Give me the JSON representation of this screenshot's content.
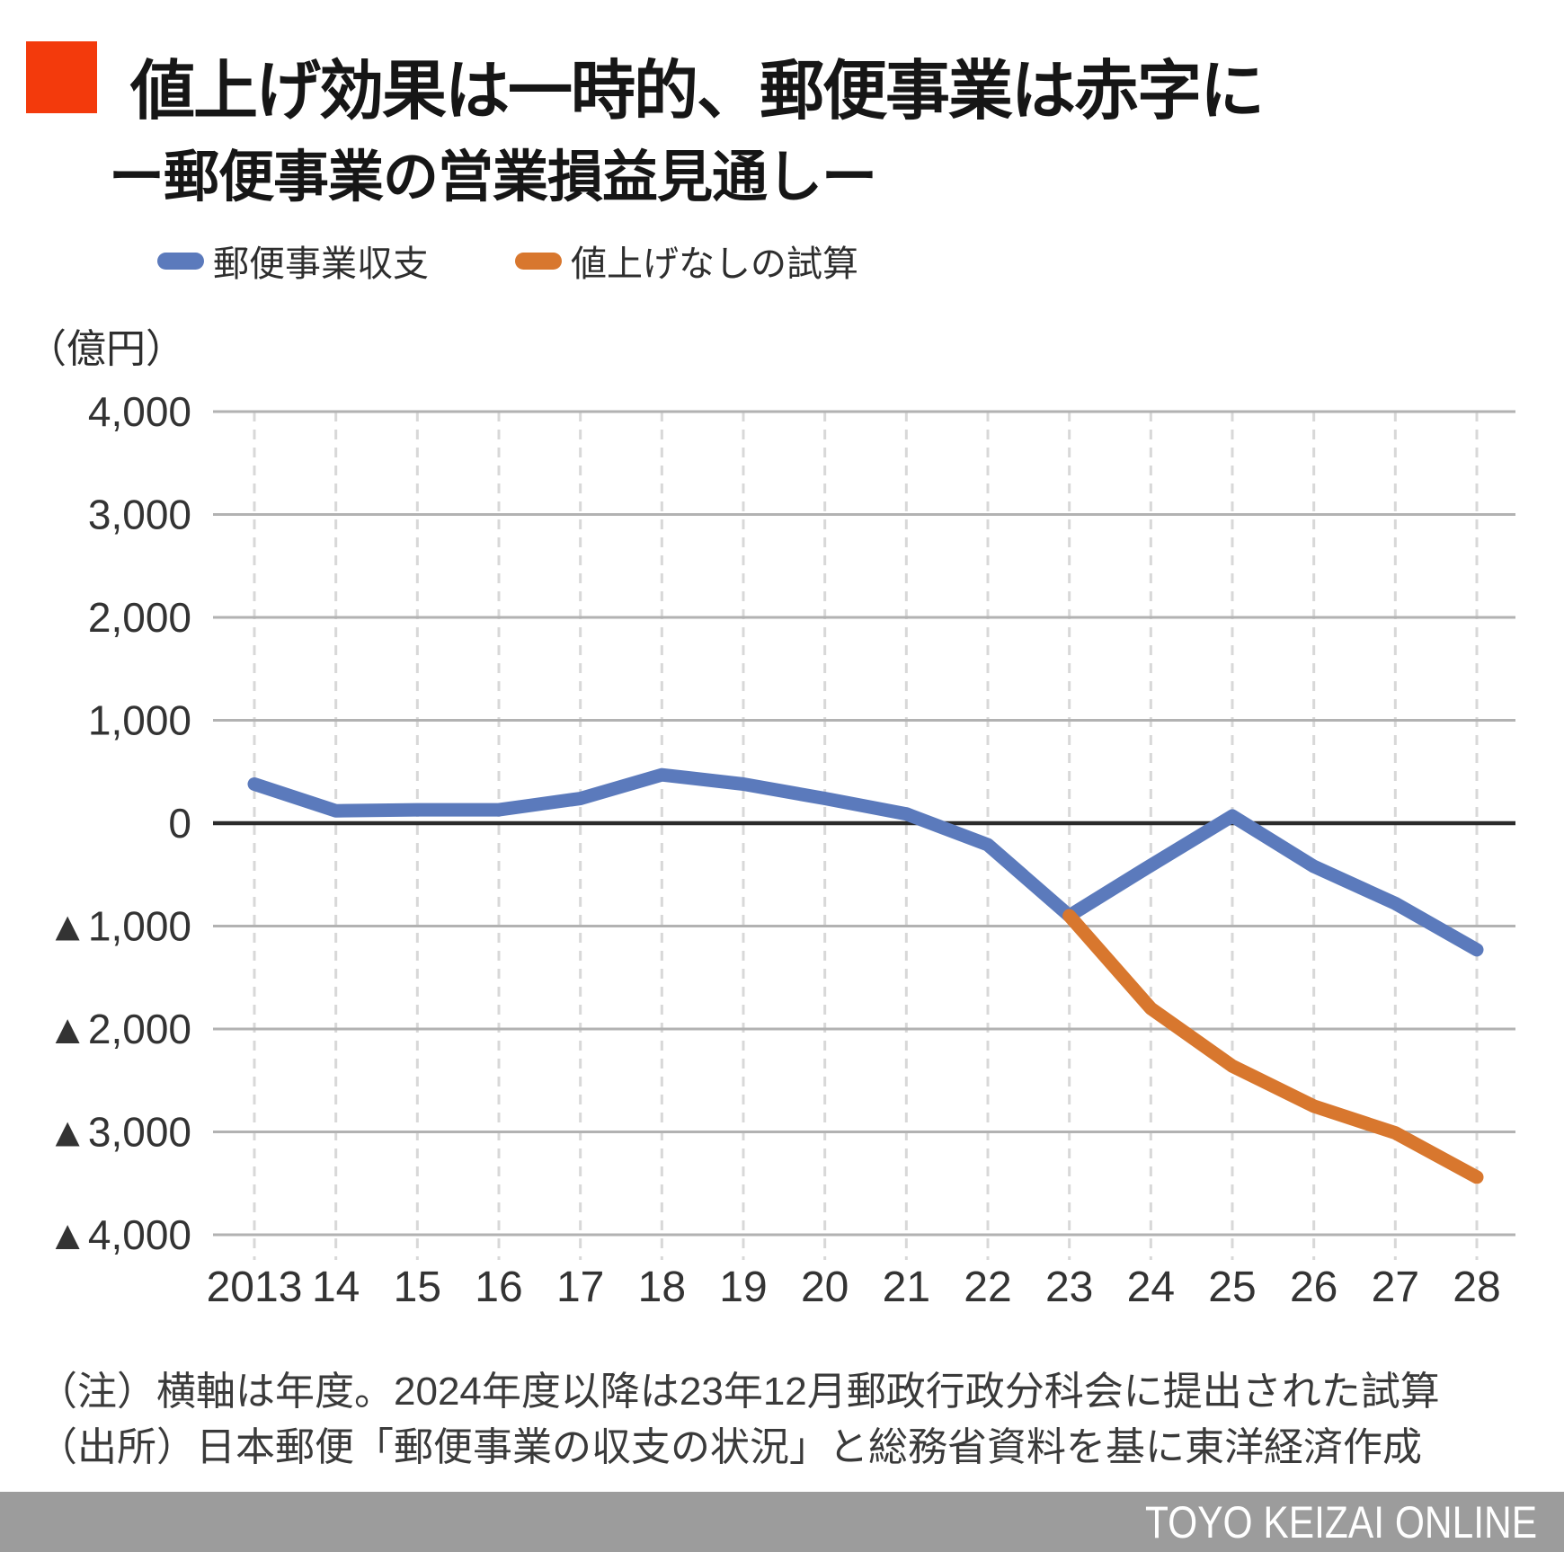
{
  "header": {
    "title": "値上げ効果は一時的、郵便事業は赤字に",
    "subtitle": "ー郵便事業の営業損益見通しー"
  },
  "legend": [
    {
      "label": "郵便事業収支",
      "color": "#5b7abc"
    },
    {
      "label": "値上げなしの試算",
      "color": "#d8772e"
    }
  ],
  "unit_label": "（億円）",
  "chart_data": {
    "type": "line",
    "title": "郵便事業の営業損益見通し",
    "categories": [
      "2013",
      "14",
      "15",
      "16",
      "17",
      "18",
      "19",
      "20",
      "21",
      "22",
      "23",
      "24",
      "25",
      "26",
      "27",
      "28"
    ],
    "series": [
      {
        "name": "郵便事業収支",
        "color": "#5b7abc",
        "values": [
          380,
          120,
          130,
          130,
          240,
          470,
          380,
          240,
          90,
          -210,
          -900,
          -410,
          70,
          -420,
          -780,
          -1230
        ]
      },
      {
        "name": "値上げなしの試算",
        "color": "#d8772e",
        "values": [
          null,
          null,
          null,
          null,
          null,
          null,
          null,
          null,
          null,
          null,
          -900,
          -1800,
          -2360,
          -2750,
          -3010,
          -3440
        ]
      }
    ],
    "ylabel": "（億円）",
    "ylim": [
      -4000,
      4000
    ],
    "ytick_step": 1000,
    "yticks": [
      "4,000",
      "3,000",
      "2,000",
      "1,000",
      "0",
      "▲1,000",
      "▲2,000",
      "▲3,000",
      "▲4,000"
    ],
    "negative_prefix": "▲",
    "grid": true,
    "legend_position": "top"
  },
  "notes": [
    "（注）横軸は年度。2024年度以降は23年12月郵政行政分科会に提出された試算",
    "（出所）日本郵便「郵便事業の収支の状況」と総務省資料を基に東洋経済作成"
  ],
  "footer": {
    "brand": "TOYO KEIZAI ONLINE"
  },
  "colors": {
    "accent_square": "#f33a0c",
    "blue": "#5b7abc",
    "orange": "#d8772e",
    "grid_solid": "#b2b2b2",
    "grid_dashed": "#d8d8d8",
    "zero_line": "#2b2b2b",
    "axis_text": "#333333",
    "footer_bg": "#9c9c9c"
  }
}
